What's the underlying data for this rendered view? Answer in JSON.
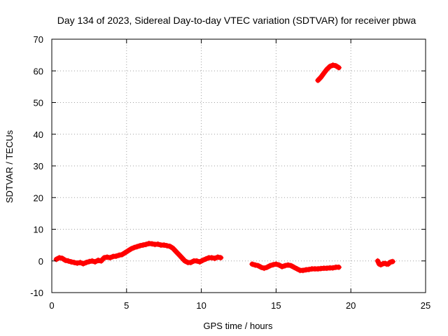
{
  "chart_data": {
    "type": "scatter",
    "title": "Day 134 of 2023, Sidereal Day-to-day VTEC variation (SDTVAR) for receiver pbwa",
    "xlabel": "GPS time / hours",
    "ylabel": "SDTVAR / TECUs",
    "xlim": [
      0,
      25
    ],
    "ylim": [
      -10,
      70
    ],
    "xticks": [
      "0",
      "5",
      "10",
      "15",
      "20",
      "25"
    ],
    "yticks": [
      "-10",
      "0",
      "10",
      "20",
      "30",
      "40",
      "50",
      "60",
      "70"
    ],
    "grid": true,
    "legend": "none",
    "marker": "+",
    "color": "#ff0000",
    "series": [
      {
        "name": "SDTVAR",
        "segments": [
          {
            "x": [
              0.3,
              0.5,
              0.7,
              0.9,
              1.1,
              1.3,
              1.5,
              1.7,
              1.9,
              2.1,
              2.3,
              2.5,
              2.7,
              2.9,
              3.1,
              3.3,
              3.5,
              3.7,
              3.9,
              4.1,
              4.3,
              4.5,
              4.7,
              4.9,
              5.1,
              5.3,
              5.5,
              5.7,
              5.9,
              6.1,
              6.3,
              6.5,
              6.7,
              6.9,
              7.1,
              7.3,
              7.5,
              7.7,
              7.9,
              8.1,
              8.3,
              8.5,
              8.7,
              8.9,
              9.1,
              9.3,
              9.5,
              9.7,
              9.9,
              10.1,
              10.3,
              10.5,
              10.7,
              10.9,
              11.1,
              11.3
            ],
            "y": [
              0.5,
              1.0,
              0.8,
              0.2,
              0.0,
              -0.3,
              -0.5,
              -0.7,
              -0.5,
              -0.9,
              -0.5,
              -0.2,
              0.0,
              -0.3,
              0.2,
              0.0,
              1.0,
              1.2,
              1.0,
              1.4,
              1.5,
              1.8,
              2.0,
              2.6,
              3.2,
              3.8,
              4.2,
              4.5,
              4.8,
              5.0,
              5.2,
              5.5,
              5.4,
              5.2,
              5.3,
              5.0,
              5.0,
              4.8,
              4.6,
              4.0,
              3.0,
              2.0,
              1.0,
              0.0,
              -0.5,
              -0.5,
              0.0,
              0.0,
              -0.3,
              0.2,
              0.6,
              1.0,
              1.0,
              0.8,
              1.2,
              1.0
            ]
          },
          {
            "x": [
              13.4,
              13.6,
              13.8,
              14.0,
              14.2,
              14.4,
              14.6,
              14.8,
              15.0,
              15.2,
              15.4,
              15.6,
              15.8,
              16.0,
              16.2,
              16.4,
              16.6,
              16.8,
              17.0,
              17.2,
              17.4,
              17.6,
              17.8,
              18.0,
              18.2,
              18.4,
              18.6,
              18.8,
              19.0,
              19.2
            ],
            "y": [
              -1.0,
              -1.3,
              -1.5,
              -2.0,
              -2.3,
              -2.0,
              -1.5,
              -1.2,
              -1.0,
              -1.3,
              -1.8,
              -1.5,
              -1.3,
              -1.5,
              -2.0,
              -2.5,
              -3.0,
              -3.0,
              -2.8,
              -2.7,
              -2.5,
              -2.5,
              -2.5,
              -2.4,
              -2.3,
              -2.3,
              -2.2,
              -2.2,
              -2.0,
              -2.0
            ]
          },
          {
            "x": [
              17.8,
              18.0,
              18.2,
              18.4,
              18.6,
              18.8,
              19.0,
              19.2
            ],
            "y": [
              57.0,
              58.0,
              59.3,
              60.5,
              61.4,
              61.8,
              61.6,
              61.0
            ]
          },
          {
            "x": [
              21.8,
              21.9,
              22.0,
              22.1,
              22.2,
              22.3,
              22.4,
              22.5,
              22.6,
              22.7,
              22.8
            ],
            "y": [
              0.0,
              -1.0,
              -1.2,
              -1.0,
              -0.8,
              -0.8,
              -1.0,
              -1.0,
              -0.5,
              -0.3,
              -0.2
            ]
          }
        ]
      }
    ]
  }
}
